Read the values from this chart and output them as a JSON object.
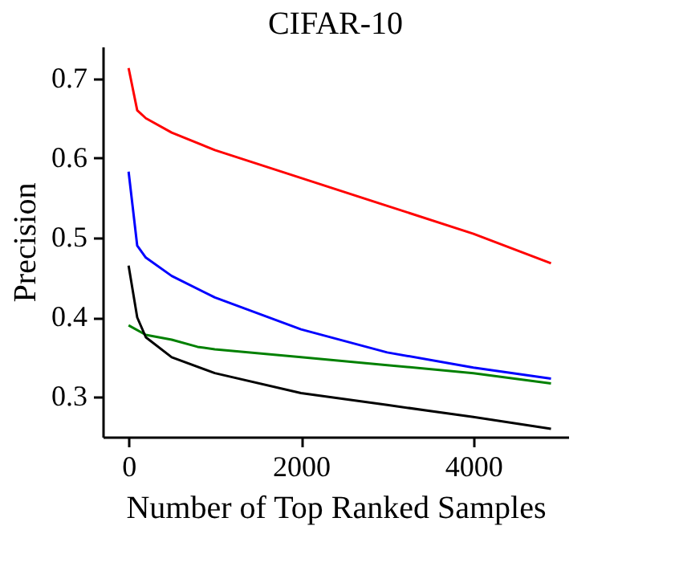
{
  "chart_data": {
    "type": "line",
    "title": "CIFAR-10",
    "xlabel": "Number of Top Ranked Samples",
    "ylabel": "Precision",
    "xlim": [
      -300,
      5100
    ],
    "ylim": [
      0.25,
      0.74
    ],
    "xticks": [
      0,
      2000,
      4000
    ],
    "yticks": [
      0.3,
      0.4,
      0.5,
      0.6,
      0.7
    ],
    "grid": false,
    "marker": "none",
    "line_style": "solid",
    "series": [
      {
        "color": "#ff0000",
        "x": [
          0,
          100,
          200,
          500,
          1000,
          2000,
          3000,
          4000,
          4900
        ],
        "values": [
          0.713,
          0.66,
          0.65,
          0.632,
          0.61,
          0.575,
          0.54,
          0.505,
          0.468
        ]
      },
      {
        "color": "#0000ff",
        "x": [
          0,
          100,
          200,
          500,
          1000,
          2000,
          3000,
          4000,
          4900
        ],
        "values": [
          0.583,
          0.49,
          0.475,
          0.452,
          0.425,
          0.385,
          0.356,
          0.337,
          0.323
        ]
      },
      {
        "color": "#008000",
        "x": [
          0,
          200,
          500,
          800,
          1000,
          2000,
          3000,
          4000,
          4900
        ],
        "values": [
          0.39,
          0.378,
          0.372,
          0.363,
          0.36,
          0.35,
          0.34,
          0.33,
          0.317
        ]
      },
      {
        "color": "#000000",
        "x": [
          0,
          100,
          200,
          500,
          1000,
          2000,
          3000,
          4000,
          4900
        ],
        "values": [
          0.465,
          0.4,
          0.375,
          0.35,
          0.33,
          0.305,
          0.29,
          0.275,
          0.26
        ]
      }
    ]
  }
}
